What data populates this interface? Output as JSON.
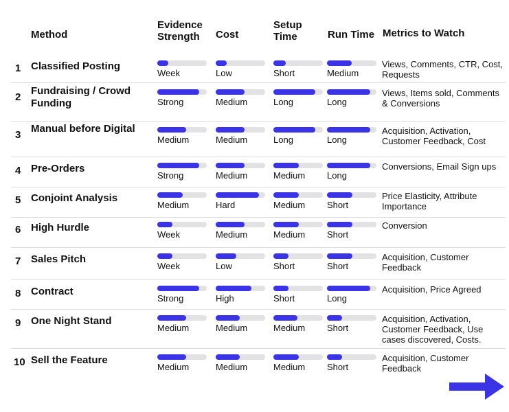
{
  "headers": {
    "method": "Method",
    "evidence_l1": "Evidence",
    "evidence_l2": "Strength",
    "cost": "Cost",
    "setup_l1": "Setup",
    "setup_l2": "Time",
    "runtime": "Run Time",
    "metrics": "Metrics to Watch"
  },
  "colors": {
    "bar_fill": "#3b34e6",
    "bar_track": "#e2e2e4",
    "arrow": "#3b34e6"
  },
  "rows": [
    {
      "num": "1",
      "method": "Classified Posting",
      "evidence": {
        "label": "Week",
        "level": 0.22
      },
      "cost": {
        "label": "Low",
        "level": 0.22
      },
      "setup": {
        "label": "Short",
        "level": 0.25
      },
      "runtime": {
        "label": "Medium",
        "level": 0.5
      },
      "metrics": "Views, Comments, CTR, Cost, Requests"
    },
    {
      "num": "2",
      "method": "Fundraising / Crowd Funding",
      "evidence": {
        "label": "Strong",
        "level": 0.85
      },
      "cost": {
        "label": "Medium",
        "level": 0.58
      },
      "setup": {
        "label": "Long",
        "level": 0.85
      },
      "runtime": {
        "label": "Long",
        "level": 0.88
      },
      "metrics": "Views, Items sold, Comments & Conversions"
    },
    {
      "num": "3",
      "method": "Manual before Digital",
      "evidence": {
        "label": "Medium",
        "level": 0.58
      },
      "cost": {
        "label": "Medium",
        "level": 0.58
      },
      "setup": {
        "label": "Long",
        "level": 0.85
      },
      "runtime": {
        "label": "Long",
        "level": 0.88
      },
      "metrics": "Acquisition, Activation, Customer Feedback, Cost"
    },
    {
      "num": "4",
      "method": "Pre-Orders",
      "evidence": {
        "label": "Strong",
        "level": 0.85
      },
      "cost": {
        "label": "Medium",
        "level": 0.58
      },
      "setup": {
        "label": "Medium",
        "level": 0.52
      },
      "runtime": {
        "label": "Long",
        "level": 0.88
      },
      "metrics": "Conversions, Email Sign ups"
    },
    {
      "num": "5",
      "method": "Conjoint Analysis",
      "evidence": {
        "label": "Medium",
        "level": 0.52
      },
      "cost": {
        "label": "Hard",
        "level": 0.88
      },
      "setup": {
        "label": "Medium",
        "level": 0.52
      },
      "runtime": {
        "label": "Short",
        "level": 0.52
      },
      "metrics": "Price Elasticity, Attribute Importance"
    },
    {
      "num": "6",
      "method": "High Hurdle",
      "evidence": {
        "label": "Week",
        "level": 0.3
      },
      "cost": {
        "label": "Medium",
        "level": 0.58
      },
      "setup": {
        "label": "Medium",
        "level": 0.52
      },
      "runtime": {
        "label": "Short",
        "level": 0.52
      },
      "metrics": "Conversion"
    },
    {
      "num": "7",
      "method": "Sales Pitch",
      "evidence": {
        "label": "Week",
        "level": 0.3
      },
      "cost": {
        "label": "Low",
        "level": 0.42
      },
      "setup": {
        "label": "Short",
        "level": 0.3
      },
      "runtime": {
        "label": "Short",
        "level": 0.52
      },
      "metrics": "Acquisition, Customer Feedback"
    },
    {
      "num": "8",
      "method": "Contract",
      "evidence": {
        "label": "Strong",
        "level": 0.85
      },
      "cost": {
        "label": "High",
        "level": 0.72
      },
      "setup": {
        "label": "Short",
        "level": 0.3
      },
      "runtime": {
        "label": "Long",
        "level": 0.88
      },
      "metrics": "Acquisition, Price Agreed"
    },
    {
      "num": "9",
      "method": "One Night Stand",
      "evidence": {
        "label": "Medium",
        "level": 0.58
      },
      "cost": {
        "label": "Medium",
        "level": 0.48
      },
      "setup": {
        "label": "Medium",
        "level": 0.48
      },
      "runtime": {
        "label": "Short",
        "level": 0.3
      },
      "metrics": "Acquisition, Activation, Customer Feedback, Use cases discovered, Costs."
    },
    {
      "num": "10",
      "method": "Sell the Feature",
      "evidence": {
        "label": "Medium",
        "level": 0.58
      },
      "cost": {
        "label": "Medium",
        "level": 0.48
      },
      "setup": {
        "label": "Medium",
        "level": 0.52
      },
      "runtime": {
        "label": "Short",
        "level": 0.3
      },
      "metrics": "Acquisition, Customer Feedback"
    }
  ]
}
